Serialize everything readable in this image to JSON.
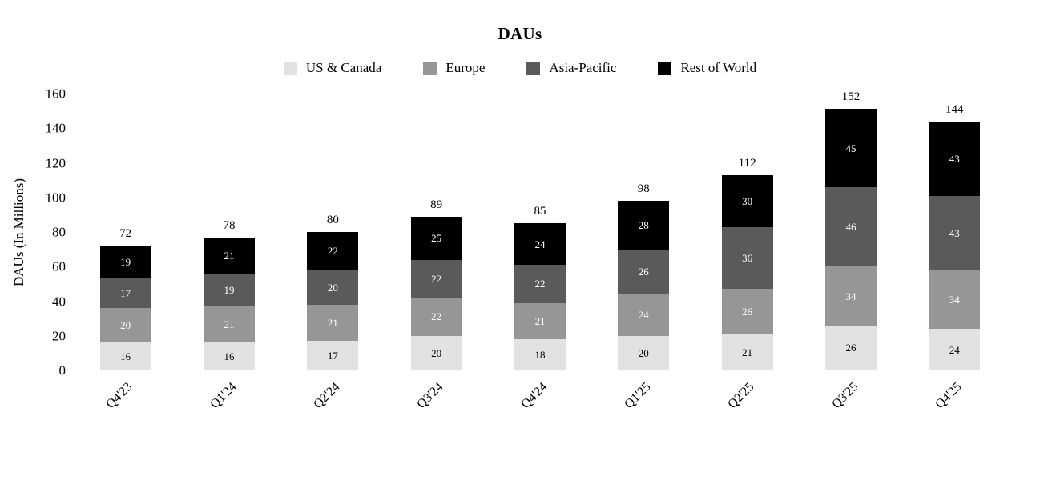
{
  "chart_data": {
    "type": "bar",
    "stacked": true,
    "title": "DAUs",
    "ylabel": "DAUs (In Millions)",
    "xlabel": "",
    "ylim": [
      0,
      160
    ],
    "yticks": [
      0,
      20,
      40,
      60,
      80,
      100,
      120,
      140,
      160
    ],
    "grid": false,
    "legend_position": "top",
    "background": "#ffffff",
    "categories": [
      "Q4'23",
      "Q1'24",
      "Q2'24",
      "Q3'24",
      "Q4'24",
      "Q1'25",
      "Q2'25",
      "Q3'25",
      "Q4'25"
    ],
    "series": [
      {
        "name": "US & Canada",
        "color": "#e2e2e2",
        "label_color": "#000000",
        "values": [
          16,
          16,
          17,
          20,
          18,
          20,
          21,
          26,
          24
        ]
      },
      {
        "name": "Europe",
        "color": "#969696",
        "label_color": "#ffffff",
        "values": [
          20,
          21,
          21,
          22,
          21,
          24,
          26,
          34,
          34
        ]
      },
      {
        "name": "Asia-Pacific",
        "color": "#5a5a5a",
        "label_color": "#ffffff",
        "values": [
          17,
          19,
          20,
          22,
          22,
          26,
          36,
          46,
          43
        ]
      },
      {
        "name": "Rest of World",
        "color": "#000000",
        "label_color": "#ffffff",
        "values": [
          19,
          21,
          22,
          25,
          24,
          28,
          30,
          45,
          43
        ]
      }
    ],
    "totals": [
      72,
      78,
      80,
      89,
      85,
      98,
      112,
      152,
      144
    ]
  }
}
